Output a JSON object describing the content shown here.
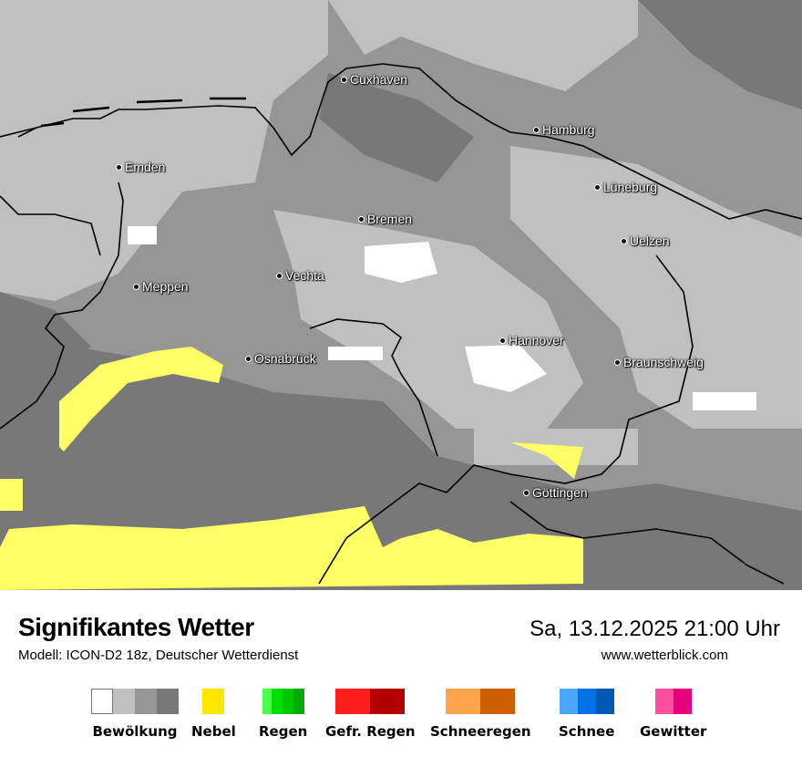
{
  "header": {
    "title": "Signifikantes Wetter",
    "subtitle": "Modell: ICON-D2 18z, Deutscher Wetterdienst",
    "datetime": "Sa, 13.12.2025 21:00 Uhr",
    "website": "www.wetterblick.com"
  },
  "cities": [
    "Cuxhaven",
    "Hamburg",
    "Emden",
    "Lüneburg",
    "Bremen",
    "Uelzen",
    "Vechta",
    "Meppen",
    "Hannover",
    "Osnabrück",
    "Braunschweig",
    "Göttingen"
  ],
  "legend": [
    {
      "label": "Bewölkung",
      "colors": [
        "#ffffff",
        "#c0c0c0",
        "#969696",
        "#787878"
      ]
    },
    {
      "label": "Nebel",
      "colors": [
        "#ffe600"
      ]
    },
    {
      "label": "Regen",
      "colors": [
        "#4cff4c",
        "#00e000",
        "#00c800",
        "#00aa00"
      ]
    },
    {
      "label": "Gefr. Regen",
      "colors": [
        "#ff1e1e",
        "#b40000"
      ]
    },
    {
      "label": "Schneeregen",
      "colors": [
        "#ffa54c",
        "#cd5f00"
      ]
    },
    {
      "label": "Schnee",
      "colors": [
        "#4ca5ff",
        "#0072e6",
        "#0058b4"
      ]
    },
    {
      "label": "Gewitter",
      "colors": [
        "#ff50a0",
        "#e6007a"
      ]
    }
  ]
}
